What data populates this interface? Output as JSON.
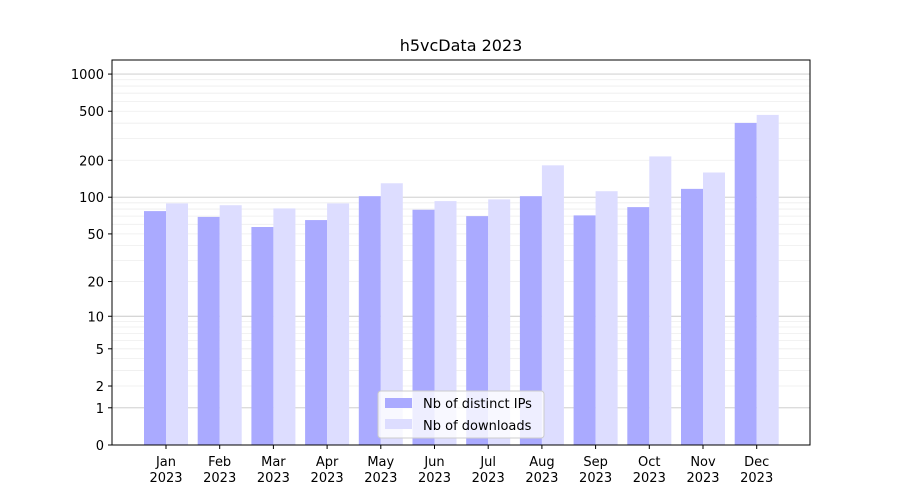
{
  "chart_data": {
    "type": "bar",
    "title": "h5vcData 2023",
    "xlabel": "",
    "ylabel": "",
    "yscale": "log1p",
    "ylim": [
      0,
      1300
    ],
    "yticks": [
      0,
      1,
      2,
      5,
      10,
      20,
      50,
      100,
      200,
      500,
      1000
    ],
    "categories": [
      {
        "month": "Jan",
        "year": "2023"
      },
      {
        "month": "Feb",
        "year": "2023"
      },
      {
        "month": "Mar",
        "year": "2023"
      },
      {
        "month": "Apr",
        "year": "2023"
      },
      {
        "month": "May",
        "year": "2023"
      },
      {
        "month": "Jun",
        "year": "2023"
      },
      {
        "month": "Jul",
        "year": "2023"
      },
      {
        "month": "Aug",
        "year": "2023"
      },
      {
        "month": "Sep",
        "year": "2023"
      },
      {
        "month": "Oct",
        "year": "2023"
      },
      {
        "month": "Nov",
        "year": "2023"
      },
      {
        "month": "Dec",
        "year": "2023"
      }
    ],
    "series": [
      {
        "name": "Nb of distinct IPs",
        "color": "#aaaaff",
        "values": [
          77,
          69,
          57,
          65,
          102,
          79,
          70,
          102,
          71,
          83,
          117,
          402
        ]
      },
      {
        "name": "Nb of downloads",
        "color": "#ddddff",
        "values": [
          89,
          86,
          81,
          89,
          130,
          93,
          96,
          182,
          112,
          215,
          159,
          467
        ]
      }
    ],
    "grid": true,
    "legend": "lower-center"
  }
}
